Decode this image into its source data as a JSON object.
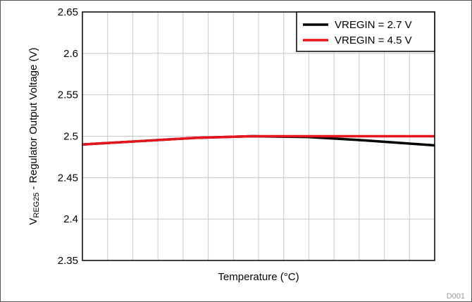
{
  "chart_data": {
    "type": "line",
    "title": "",
    "xlabel": "Temperature (°C)",
    "ylabel_main": "V",
    "ylabel_sub": "REG25",
    "ylabel_rest": " - Regulator Output Voltage (V)",
    "ylim": [
      2.35,
      2.65
    ],
    "yticks": [
      "2.65",
      "2.6",
      "2.55",
      "2.5",
      "2.45",
      "2.4",
      "2.35"
    ],
    "ytick_values": [
      2.65,
      2.6,
      2.55,
      2.5,
      2.45,
      2.4,
      2.35
    ],
    "xlim": [
      -40,
      85
    ],
    "x_tick_labels_shown": false,
    "grid": true,
    "legend_position": "top-right",
    "series": [
      {
        "name": "VREGIN = 2.7 V",
        "color": "#000000",
        "x": [
          -40,
          -20,
          0,
          20,
          40,
          60,
          85
        ],
        "y": [
          2.49,
          2.494,
          2.498,
          2.5,
          2.499,
          2.495,
          2.489
        ]
      },
      {
        "name": "VREGIN = 4.5 V",
        "color": "#e8141c",
        "x": [
          -40,
          -20,
          0,
          20,
          40,
          60,
          85
        ],
        "y": [
          2.49,
          2.494,
          2.498,
          2.5,
          2.5,
          2.5,
          2.5
        ]
      }
    ]
  },
  "figure_id": "D001"
}
